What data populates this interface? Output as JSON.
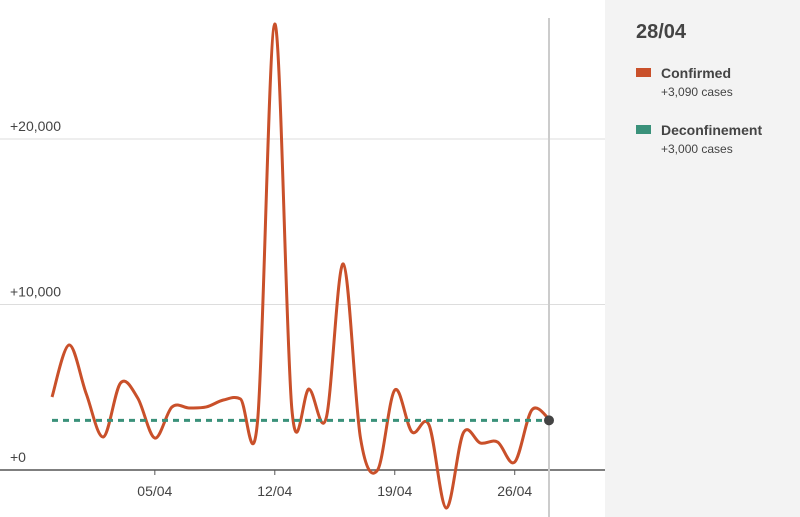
{
  "chart_data": {
    "type": "line",
    "x": [
      null,
      null,
      null,
      null,
      null,
      null,
      "05/04",
      null,
      null,
      null,
      null,
      null,
      null,
      "12/04",
      null,
      null,
      null,
      null,
      null,
      null,
      "19/04",
      null,
      null,
      null,
      null,
      null,
      null,
      "26/04",
      null,
      "28/04"
    ],
    "series": [
      {
        "name": "Confirmed",
        "color": "#c9502a",
        "dash": false,
        "last_label": "+3,090 cases",
        "values": [
          4410,
          7550,
          4600,
          2000,
          5260,
          4350,
          1930,
          3810,
          3750,
          3810,
          4230,
          4290,
          3020,
          26950,
          3630,
          4890,
          3140,
          12450,
          1930,
          0,
          4830,
          2300,
          2720,
          -2300,
          2240,
          1630,
          1690,
          480,
          3630,
          3090
        ]
      },
      {
        "name": "Deconfinement",
        "color": "#3a917a",
        "dash": true,
        "last_label": "+3,000 cases",
        "values": [
          3000,
          3000,
          3000,
          3000,
          3000,
          3000,
          3000,
          3000,
          3000,
          3000,
          3000,
          3000,
          3000,
          3000,
          3000,
          3000,
          3000,
          3000,
          3000,
          3000,
          3000,
          3000,
          3000,
          3000,
          3000,
          3000,
          3000,
          3000,
          3000,
          3000
        ]
      }
    ],
    "ylim": [
      -2840,
      28400
    ],
    "yticks": [
      {
        "value": 0,
        "label": "+0"
      },
      {
        "value": 10000,
        "label": "+10,000"
      },
      {
        "value": 20000,
        "label": "+20,000"
      }
    ],
    "grid": true
  }
}
